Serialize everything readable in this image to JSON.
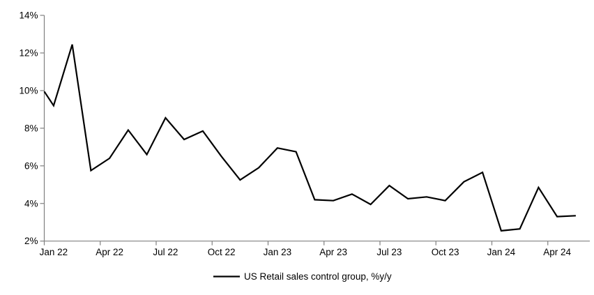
{
  "chart_data": {
    "type": "line",
    "title": "",
    "xlabel": "",
    "ylabel": "",
    "x": [
      "Jan 22",
      "Feb 22",
      "Mar 22",
      "Apr 22",
      "May 22",
      "Jun 22",
      "Jul 22",
      "Aug 22",
      "Sep 22",
      "Oct 22",
      "Nov 22",
      "Dec 22",
      "Jan 23",
      "Feb 23",
      "Mar 23",
      "Apr 23",
      "May 23",
      "Jun 23",
      "Jul 23",
      "Aug 23",
      "Sep 23",
      "Oct 23",
      "Nov 23",
      "Dec 23",
      "Jan 24",
      "Feb 24",
      "Mar 24",
      "Apr 24",
      "May 24"
    ],
    "series": [
      {
        "name": "US Retail sales control group, %y/y",
        "color": "#000000",
        "values": [
          9.2,
          12.45,
          5.75,
          6.4,
          7.9,
          6.6,
          8.55,
          7.4,
          7.85,
          6.5,
          5.25,
          5.9,
          6.95,
          6.75,
          4.2,
          4.15,
          4.5,
          3.95,
          4.95,
          4.25,
          4.35,
          4.15,
          5.15,
          5.65,
          2.55,
          2.65,
          4.85,
          3.3,
          3.35
        ]
      }
    ],
    "line_enters_at_left_axis_value": 9.95,
    "ylim": [
      2,
      14
    ],
    "yticks": [
      2,
      4,
      6,
      8,
      10,
      12,
      14
    ],
    "ytick_labels": [
      "2%",
      "4%",
      "6%",
      "8%",
      "10%",
      "12%",
      "14%"
    ],
    "xtick_labels": [
      "Jan 22",
      "Apr 22",
      "Jul 22",
      "Oct 22",
      "Jan 23",
      "Apr 23",
      "Jul 23",
      "Oct 23",
      "Jan 24",
      "Apr 24"
    ],
    "xtick_label_interval_months": 3,
    "grid": false,
    "legend_position": "bottom-center",
    "axis_color": "#808080",
    "text_color": "#000000",
    "background_color": "#ffffff"
  }
}
